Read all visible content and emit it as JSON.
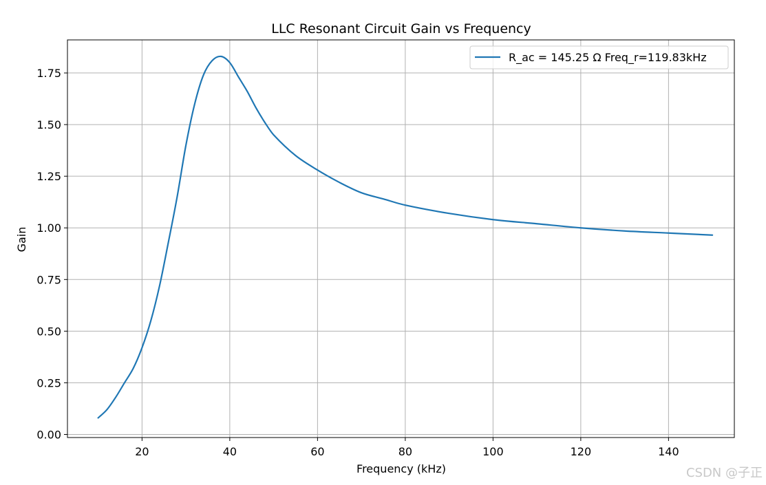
{
  "chart_data": {
    "type": "line",
    "title": "LLC Resonant Circuit Gain vs Frequency",
    "xlabel": "Frequency (kHz)",
    "ylabel": "Gain",
    "xlim": [
      3,
      155
    ],
    "ylim": [
      -0.015,
      1.91
    ],
    "xticks": [
      20,
      40,
      60,
      80,
      100,
      120,
      140
    ],
    "xtick_labels": [
      "20",
      "40",
      "60",
      "80",
      "100",
      "120",
      "140"
    ],
    "yticks": [
      0.0,
      0.25,
      0.5,
      0.75,
      1.0,
      1.25,
      1.5,
      1.75
    ],
    "ytick_labels": [
      "0.00",
      "0.25",
      "0.50",
      "0.75",
      "1.00",
      "1.25",
      "1.50",
      "1.75"
    ],
    "grid": true,
    "legend_position": "top-right",
    "series": [
      {
        "name": "R_ac = 145.25 Ω Freq_r=119.83kHz",
        "color": "#1f77b4",
        "x": [
          10,
          12,
          14,
          16,
          18,
          20,
          22,
          24,
          26,
          28,
          30,
          32,
          34,
          36,
          38,
          40,
          42,
          44,
          46,
          48,
          50,
          55,
          60,
          65,
          70,
          75,
          80,
          90,
          100,
          110,
          120,
          130,
          140,
          150
        ],
        "y": [
          0.08,
          0.12,
          0.18,
          0.25,
          0.32,
          0.42,
          0.55,
          0.72,
          0.93,
          1.15,
          1.4,
          1.6,
          1.74,
          1.81,
          1.83,
          1.8,
          1.73,
          1.66,
          1.58,
          1.51,
          1.45,
          1.35,
          1.28,
          1.22,
          1.17,
          1.14,
          1.11,
          1.07,
          1.04,
          1.02,
          1.0,
          0.985,
          0.975,
          0.965
        ]
      }
    ]
  },
  "watermark": "CSDN @子正"
}
